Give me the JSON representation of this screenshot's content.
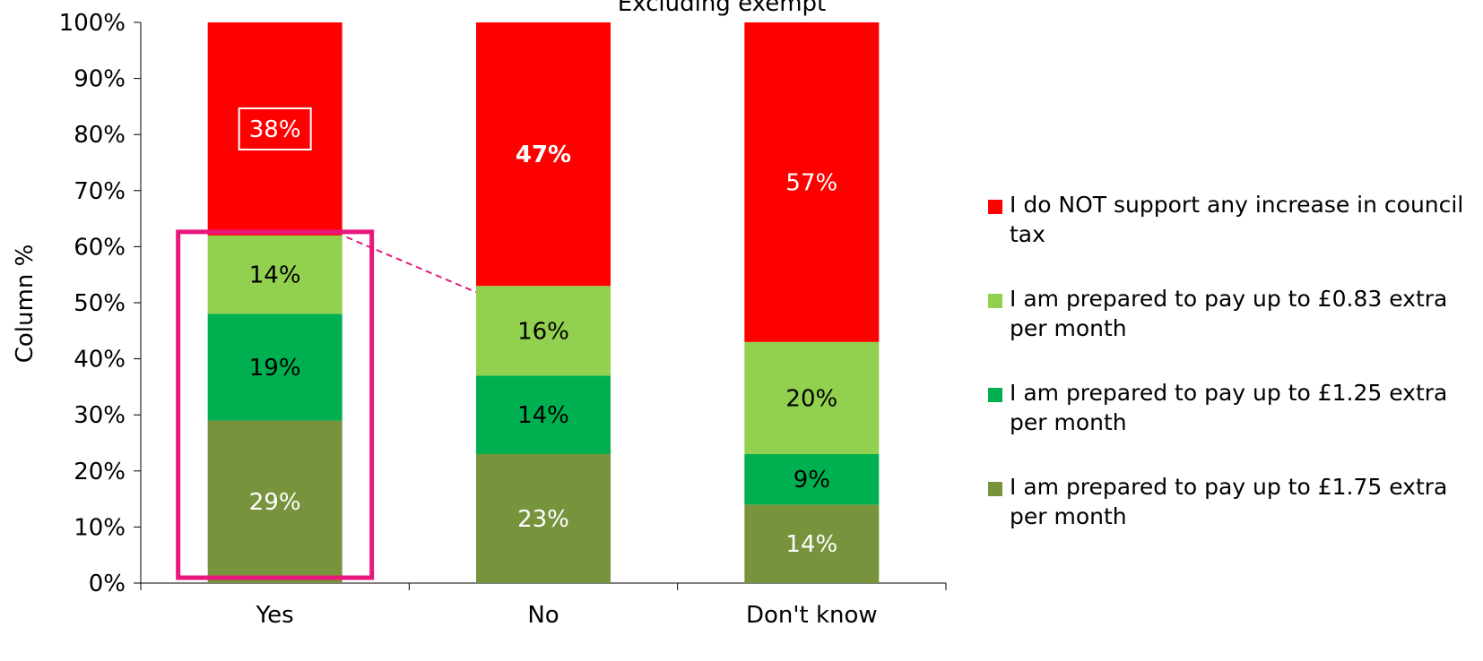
{
  "chart_data": {
    "type": "bar",
    "stacked": true,
    "title": "Excluding exempt",
    "xlabel": "",
    "ylabel": "Column %",
    "ylim": [
      0,
      100
    ],
    "yticks": [
      "0%",
      "10%",
      "20%",
      "30%",
      "40%",
      "50%",
      "60%",
      "70%",
      "80%",
      "90%",
      "100%"
    ],
    "categories": [
      "Yes",
      "No",
      "Don't know"
    ],
    "series": [
      {
        "name": "I am prepared to pay up to £1.75 extra per month",
        "color": "#77933C",
        "values": [
          29,
          23,
          14
        ],
        "labels": [
          "29%",
          "23%",
          "14%"
        ],
        "label_color": "#ffffff"
      },
      {
        "name": "I am prepared to pay up to £1.25 extra per month",
        "color": "#00B050",
        "values": [
          19,
          14,
          9
        ],
        "labels": [
          "19%",
          "14%",
          "9%"
        ],
        "label_color": "#000000"
      },
      {
        "name": "I am prepared to pay up to £0.83 extra per month",
        "color": "#92D050",
        "values": [
          14,
          16,
          20
        ],
        "labels": [
          "14%",
          "16%",
          "20%"
        ],
        "label_color": "#000000"
      },
      {
        "name": "I do NOT support any increase in council tax",
        "color": "#FF0000",
        "values": [
          38,
          47,
          57
        ],
        "labels": [
          "38%",
          "47%",
          "57%"
        ],
        "label_color": "#ffffff"
      }
    ],
    "legend_position": "right",
    "grid": false,
    "annotations": {
      "boxed_label": {
        "series": 3,
        "category": 0
      },
      "bold_label": {
        "series": 3,
        "category": 1
      },
      "highlight_color": "#E8177D",
      "highlight_box_category": "Yes",
      "connector": {
        "from_category": "Yes",
        "to_category": "No"
      }
    }
  }
}
